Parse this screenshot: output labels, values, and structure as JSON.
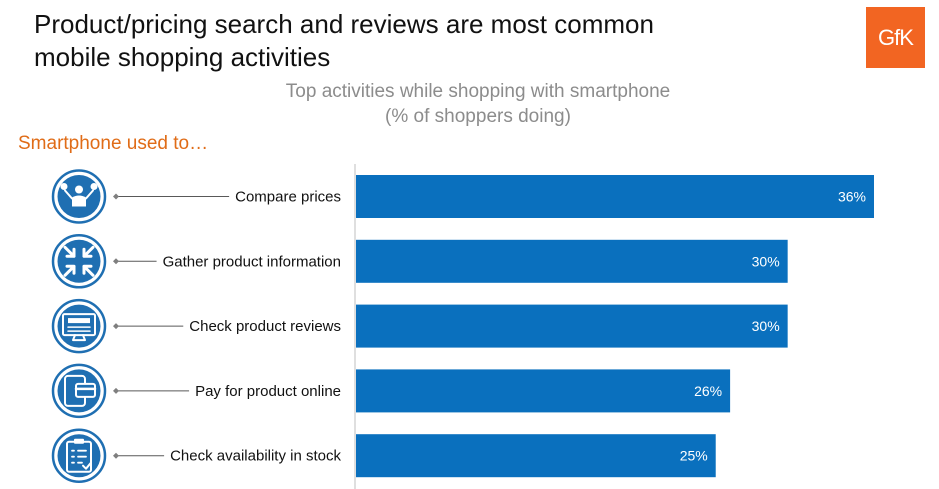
{
  "headline": {
    "line1": "Product/pricing search and reviews are most common",
    "line2": "mobile shopping activities"
  },
  "logo": {
    "text": "GfK",
    "color": "#f26522"
  },
  "section_label": "Smartphone used to…",
  "colors": {
    "bar": "#0a70be",
    "icon": "#1f6fb2",
    "section_label": "#e06c17"
  },
  "chart_data": {
    "type": "bar",
    "orientation": "horizontal",
    "title": "Top activities while shopping with smartphone",
    "subtitle": "(% of shoppers doing)",
    "xlabel": "",
    "ylabel": "",
    "unit": "%",
    "grid": false,
    "legend": "none",
    "xlim": [
      0,
      36
    ],
    "categories": [
      "Compare prices",
      "Gather product information",
      "Check product reviews",
      "Pay for product online",
      "Check availability in stock"
    ],
    "values": [
      36,
      30,
      30,
      26,
      25
    ],
    "data_labels": [
      "36%",
      "30%",
      "30%",
      "26%",
      "25%"
    ],
    "icons": [
      "scale-person-icon",
      "compress-arrows-icon",
      "reviews-monitor-icon",
      "tablet-card-icon",
      "clipboard-checklist-icon"
    ]
  }
}
